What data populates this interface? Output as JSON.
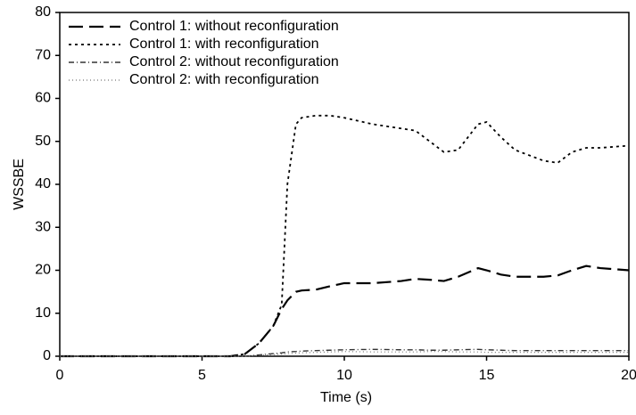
{
  "chart_data": {
    "type": "line",
    "x_label": "Time (s)",
    "y_label": "WSSBE",
    "x": [
      0,
      1,
      2,
      3,
      4,
      5,
      6,
      6.5,
      7,
      7.5,
      7.8,
      8,
      8.3,
      8.5,
      9,
      9.5,
      10,
      11,
      12,
      12.5,
      13,
      13.5,
      14,
      14.7,
      15,
      15.5,
      16,
      17,
      17.5,
      18,
      18.5,
      19,
      20
    ],
    "series": [
      {
        "name": "Control 1: without reconfiguration",
        "color": "#000000",
        "dash": "16,7",
        "width": 2.2,
        "values": [
          0,
          0,
          0,
          0,
          0,
          0,
          0,
          0.5,
          3,
          7,
          11,
          13,
          15,
          15.3,
          15.5,
          16.3,
          17,
          17,
          17.5,
          18,
          17.8,
          17.5,
          18.5,
          20.5,
          20,
          19,
          18.5,
          18.5,
          18.8,
          20,
          21,
          20.5,
          20
        ]
      },
      {
        "name": "Control 1: with reconfiguration",
        "color": "#000000",
        "dash": "3,4",
        "width": 1.8,
        "values": [
          0,
          0,
          0,
          0,
          0,
          0,
          0,
          0.5,
          3,
          7,
          12,
          40,
          54,
          55.5,
          56,
          56,
          55.5,
          54,
          53,
          52.5,
          50,
          47.5,
          48,
          54,
          54.5,
          51,
          48,
          45.5,
          45,
          47.5,
          48.5,
          48.5,
          49
        ]
      },
      {
        "name": "Control 2: without reconfiguration",
        "color": "#333333",
        "dash": "6,3,1,3",
        "width": 1.4,
        "values": [
          0,
          0,
          0,
          0,
          0,
          0,
          0,
          0,
          0.3,
          0.6,
          0.8,
          1,
          1.1,
          1.2,
          1.3,
          1.4,
          1.5,
          1.6,
          1.5,
          1.5,
          1.4,
          1.4,
          1.5,
          1.6,
          1.5,
          1.4,
          1.3,
          1.3,
          1.3,
          1.3,
          1.3,
          1.3,
          1.3
        ]
      },
      {
        "name": "Control 2: with reconfiguration",
        "color": "#777777",
        "dash": "1,3",
        "width": 1.2,
        "values": [
          0,
          0,
          0,
          0,
          0,
          0,
          0,
          0,
          0.2,
          0.4,
          0.5,
          0.6,
          0.7,
          0.8,
          0.9,
          1.0,
          1.1,
          1.0,
          1.0,
          1.0,
          1.1,
          1.1,
          1.0,
          1.0,
          0.9,
          0.9,
          0.9,
          0.9,
          0.9,
          0.9,
          0.9,
          0.9,
          0.9
        ]
      }
    ],
    "xlim": [
      0,
      20
    ],
    "xticks": [
      0,
      5,
      10,
      15,
      20
    ],
    "ylim": [
      0,
      80
    ],
    "yticks": [
      0,
      10,
      20,
      30,
      40,
      50,
      60,
      70,
      80
    ],
    "legend": "upper-left",
    "grid": false
  }
}
